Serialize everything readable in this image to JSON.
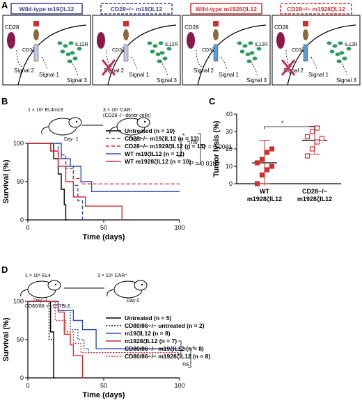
{
  "panel_a": {
    "letter": "A",
    "boxes": [
      {
        "title": "Wild-type m19ζIL12",
        "color": "#3b3f8f",
        "dashed": false,
        "cd28": "CD28",
        "cd3": "CD3ζ",
        "il12": "IL12R",
        "signals": [
          "Signal 2",
          "Signal 1",
          "Signal 3"
        ],
        "cart_color": "#bfc6e6",
        "blocked": false
      },
      {
        "title": "CD28−/− m19ζIL12",
        "color": "#3b3f8f",
        "dashed": true,
        "cd28": "",
        "cd3": "CD3ζ",
        "il12": "IL12R",
        "signals": [
          "Signal 2",
          "Signal 1",
          "Signal 3"
        ],
        "cart_color": "#bfc6e6",
        "blocked": true
      },
      {
        "title": "Wild-type m1928ζIL12",
        "color": "#d42d2d",
        "dashed": false,
        "cd28": "CD28",
        "cd3": "CD3ζ",
        "il12": "IL12R",
        "signals": [
          "Signal 2",
          "Signal 1",
          "Signal 3"
        ],
        "cart_color": "#5a9bd4",
        "blocked": false
      },
      {
        "title": "CD28−/− m1928ζIL12",
        "color": "#d42d2d",
        "dashed": true,
        "cd28": "CD28",
        "cd3": "CD3ζ",
        "il12": "IL12R",
        "signals": [
          "Signal 2",
          "Signal 1",
          "Signal 3"
        ],
        "cart_color": "#5a9bd4",
        "blocked": true
      }
    ]
  },
  "panel_b": {
    "letter": "B",
    "schematic": {
      "left_text": "1 × 10⁶ EL4m19",
      "left_day": "Day -1",
      "right_text": "3 × 10⁶ CAR⁺",
      "right_text2": "(CD28−/− donor cells)",
      "right_day": "Day 0"
    },
    "stats": {
      "p1": "P = 0.0001",
      "p2": "P = 0.0180",
      "ns": "ns",
      "star": "*"
    }
  },
  "panel_c": {
    "letter": "C",
    "star": "*"
  },
  "panel_d": {
    "letter": "D",
    "schematic": {
      "left_text": "1 × 10⁶ EL4",
      "left_day": "Day -1",
      "left_sub": "CD80/86−/− C57BL6",
      "right_text": "3 × 10⁶ CAR⁺",
      "right_day": "Day 0"
    },
    "stats": {
      "ns": "ns",
      "star": "*"
    }
  },
  "chart_data": [
    {
      "type": "line",
      "panel": "B",
      "xlabel": "Time (days)",
      "ylabel": "Survival (%)",
      "xlim": [
        0,
        100
      ],
      "ylim": [
        0,
        100
      ],
      "xticks": [
        0,
        50,
        100
      ],
      "yticks": [
        0,
        50,
        100
      ],
      "series": [
        {
          "name": "Untreated (n = 10)",
          "color": "#000000",
          "dash": "none",
          "x": [
            0,
            17,
            17,
            20,
            20,
            22,
            22,
            24,
            24,
            25,
            25,
            26
          ],
          "y": [
            100,
            100,
            80,
            80,
            60,
            60,
            40,
            40,
            20,
            20,
            0,
            0
          ]
        },
        {
          "name": "CD28−/− m19ζIL12 (n = 13)",
          "color": "#2e50b4",
          "dash": "5,3",
          "x": [
            0,
            20,
            20,
            25,
            25,
            30,
            30,
            33,
            33,
            36,
            36,
            38
          ],
          "y": [
            100,
            100,
            85,
            85,
            70,
            70,
            45,
            45,
            25,
            25,
            0,
            0
          ]
        },
        {
          "name": "CD28−/− m1928ζIL12 (n = 15)",
          "color": "#d42d2d",
          "dash": "5,3",
          "x": [
            0,
            15,
            15,
            20,
            20,
            25,
            25,
            30,
            30,
            35,
            35,
            100
          ],
          "y": [
            100,
            100,
            90,
            90,
            80,
            80,
            67,
            67,
            54,
            54,
            47,
            47
          ]
        },
        {
          "name": "WT m19ζIL12 (n = 12)",
          "color": "#2e50b4",
          "dash": "none",
          "x": [
            0,
            22,
            22,
            28,
            28,
            35,
            35,
            42,
            42,
            100
          ],
          "y": [
            100,
            100,
            80,
            80,
            70,
            70,
            50,
            50,
            37,
            37
          ]
        },
        {
          "name": "WT m1928ζIL12 (n = 10)",
          "color": "#d42d2d",
          "dash": "none",
          "x": [
            0,
            15,
            15,
            20,
            20,
            25,
            25,
            30,
            30,
            38,
            38,
            62,
            62
          ],
          "y": [
            100,
            100,
            90,
            90,
            70,
            70,
            50,
            50,
            30,
            30,
            18,
            18,
            0
          ]
        }
      ]
    },
    {
      "type": "scatter",
      "panel": "C",
      "ylabel": "Tumor lysis (%)",
      "ylim": [
        0,
        40
      ],
      "yticks": [
        0,
        10,
        20,
        30,
        40
      ],
      "categories": [
        "WT m1928ζIL12",
        "CD28−/− m1928ζIL12"
      ],
      "series": [
        {
          "name": "WT m1928ζIL12",
          "color": "#d42d2d",
          "marker": "filled-square",
          "values": [
            0,
            5,
            8,
            10,
            12,
            14,
            18,
            20
          ],
          "mean": 12,
          "sd": 13
        },
        {
          "name": "CD28−/− m1928ζIL12",
          "color": "#d42d2d",
          "marker": "open-square",
          "values": [
            16,
            20,
            24,
            26,
            27,
            30,
            32
          ],
          "mean": 25,
          "sd": 8
        }
      ]
    },
    {
      "type": "line",
      "panel": "D",
      "xlabel": "Time (days)",
      "ylabel": "Survival (%)",
      "xlim": [
        0,
        100
      ],
      "ylim": [
        0,
        100
      ],
      "xticks": [
        0,
        50,
        100
      ],
      "yticks": [
        0,
        50,
        100
      ],
      "series": [
        {
          "name": "Untreated (n = 5)",
          "color": "#000000",
          "dash": "none",
          "x": [
            0,
            15,
            15,
            17,
            17,
            18
          ],
          "y": [
            100,
            100,
            60,
            60,
            0,
            0
          ]
        },
        {
          "name": "CD80/86−/− untreated (n = 2)",
          "color": "#000000",
          "dash": "2,2",
          "x": [
            0,
            14,
            14,
            17,
            17
          ],
          "y": [
            100,
            100,
            50,
            50,
            0
          ]
        },
        {
          "name": "m19ζIL12 (n = 8)",
          "color": "#2e50b4",
          "dash": "none",
          "x": [
            0,
            20,
            20,
            30,
            30,
            36,
            36,
            45,
            45,
            100
          ],
          "y": [
            100,
            100,
            88,
            88,
            75,
            75,
            63,
            63,
            38,
            38
          ]
        },
        {
          "name": "m1928ζIL12 (n = 7)",
          "color": "#d42d2d",
          "dash": "none",
          "x": [
            0,
            20,
            20,
            24,
            24,
            28,
            28,
            30,
            30,
            36,
            36
          ],
          "y": [
            100,
            100,
            86,
            86,
            57,
            57,
            43,
            43,
            29,
            29,
            0
          ]
        },
        {
          "name": "CD80/86−/− m19ζIL12 (n = 8)",
          "color": "#2e50b4",
          "dash": "2,2",
          "x": [
            0,
            20,
            20,
            28,
            28,
            33,
            33,
            37,
            37,
            40,
            40,
            100
          ],
          "y": [
            100,
            100,
            88,
            88,
            63,
            63,
            50,
            50,
            38,
            38,
            33,
            33
          ]
        },
        {
          "name": "CD80/86−/− m1928ζIL12 (n = 8)",
          "color": "#d42d2d",
          "dash": "2,2",
          "x": [
            0,
            18,
            18,
            25,
            25,
            30,
            30,
            35,
            35,
            100
          ],
          "y": [
            100,
            100,
            75,
            75,
            60,
            60,
            45,
            45,
            33,
            33
          ]
        }
      ]
    }
  ]
}
